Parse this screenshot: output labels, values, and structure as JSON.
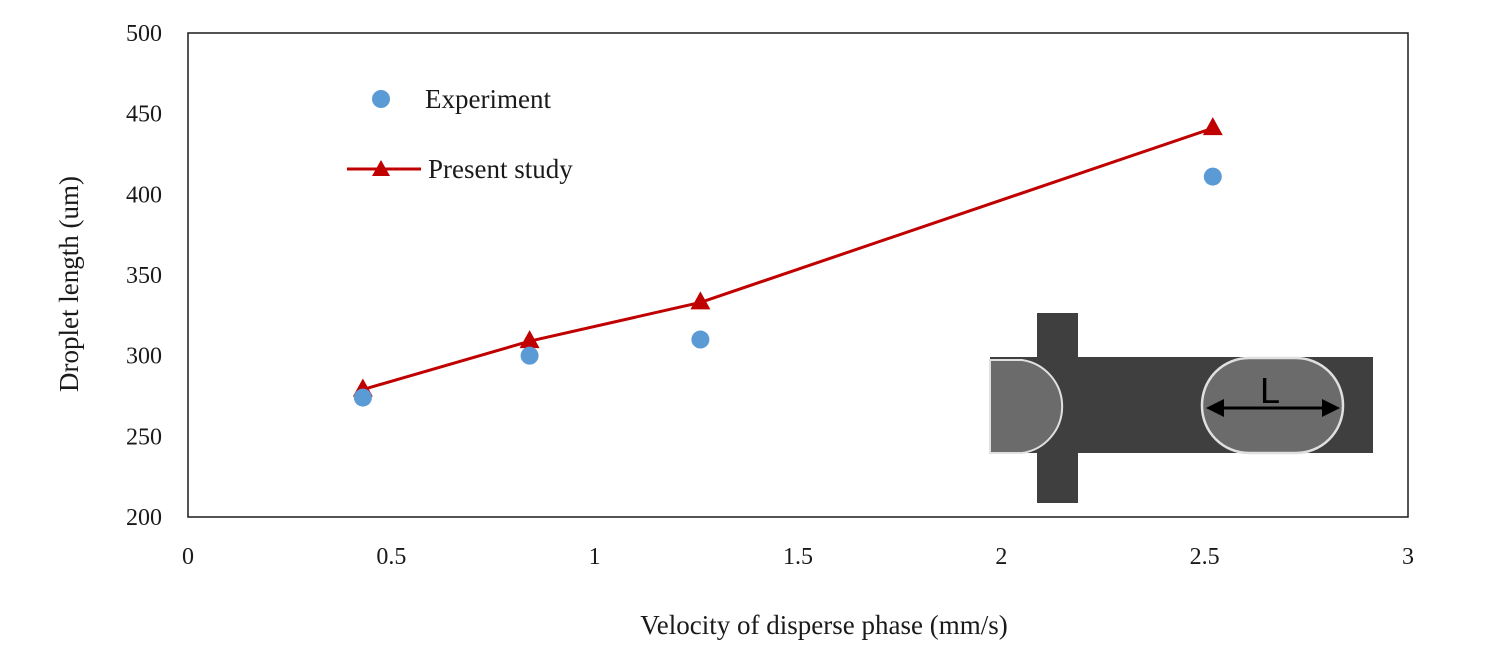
{
  "chart_data": {
    "type": "scatter",
    "xlabel": "Velocity of disperse phase (mm/s)",
    "ylabel": "Droplet length (um)",
    "xlim": [
      0,
      3
    ],
    "ylim": [
      200,
      500
    ],
    "xticks": [
      0,
      0.5,
      1,
      1.5,
      2,
      2.5,
      3
    ],
    "xtick_labels": [
      "0",
      "0.5",
      "1",
      "1.5",
      "2",
      "2.5",
      "3"
    ],
    "yticks": [
      200,
      250,
      300,
      350,
      400,
      450,
      500
    ],
    "ytick_labels": [
      "200",
      "250",
      "300",
      "350",
      "400",
      "450",
      "500"
    ],
    "grid": false,
    "legend_position": "top-left",
    "series": [
      {
        "name": "Experiment",
        "style": "markers",
        "marker": "circle",
        "color": "#5b9bd5",
        "x": [
          0.43,
          0.84,
          1.26,
          2.52
        ],
        "y": [
          274,
          300,
          310,
          411
        ]
      },
      {
        "name": "Present study",
        "style": "line+markers",
        "marker": "triangle",
        "color": "#c00000",
        "x": [
          0.43,
          0.84,
          1.26,
          2.52
        ],
        "y": [
          279,
          309,
          333,
          441
        ]
      }
    ],
    "inset_label": "L"
  }
}
